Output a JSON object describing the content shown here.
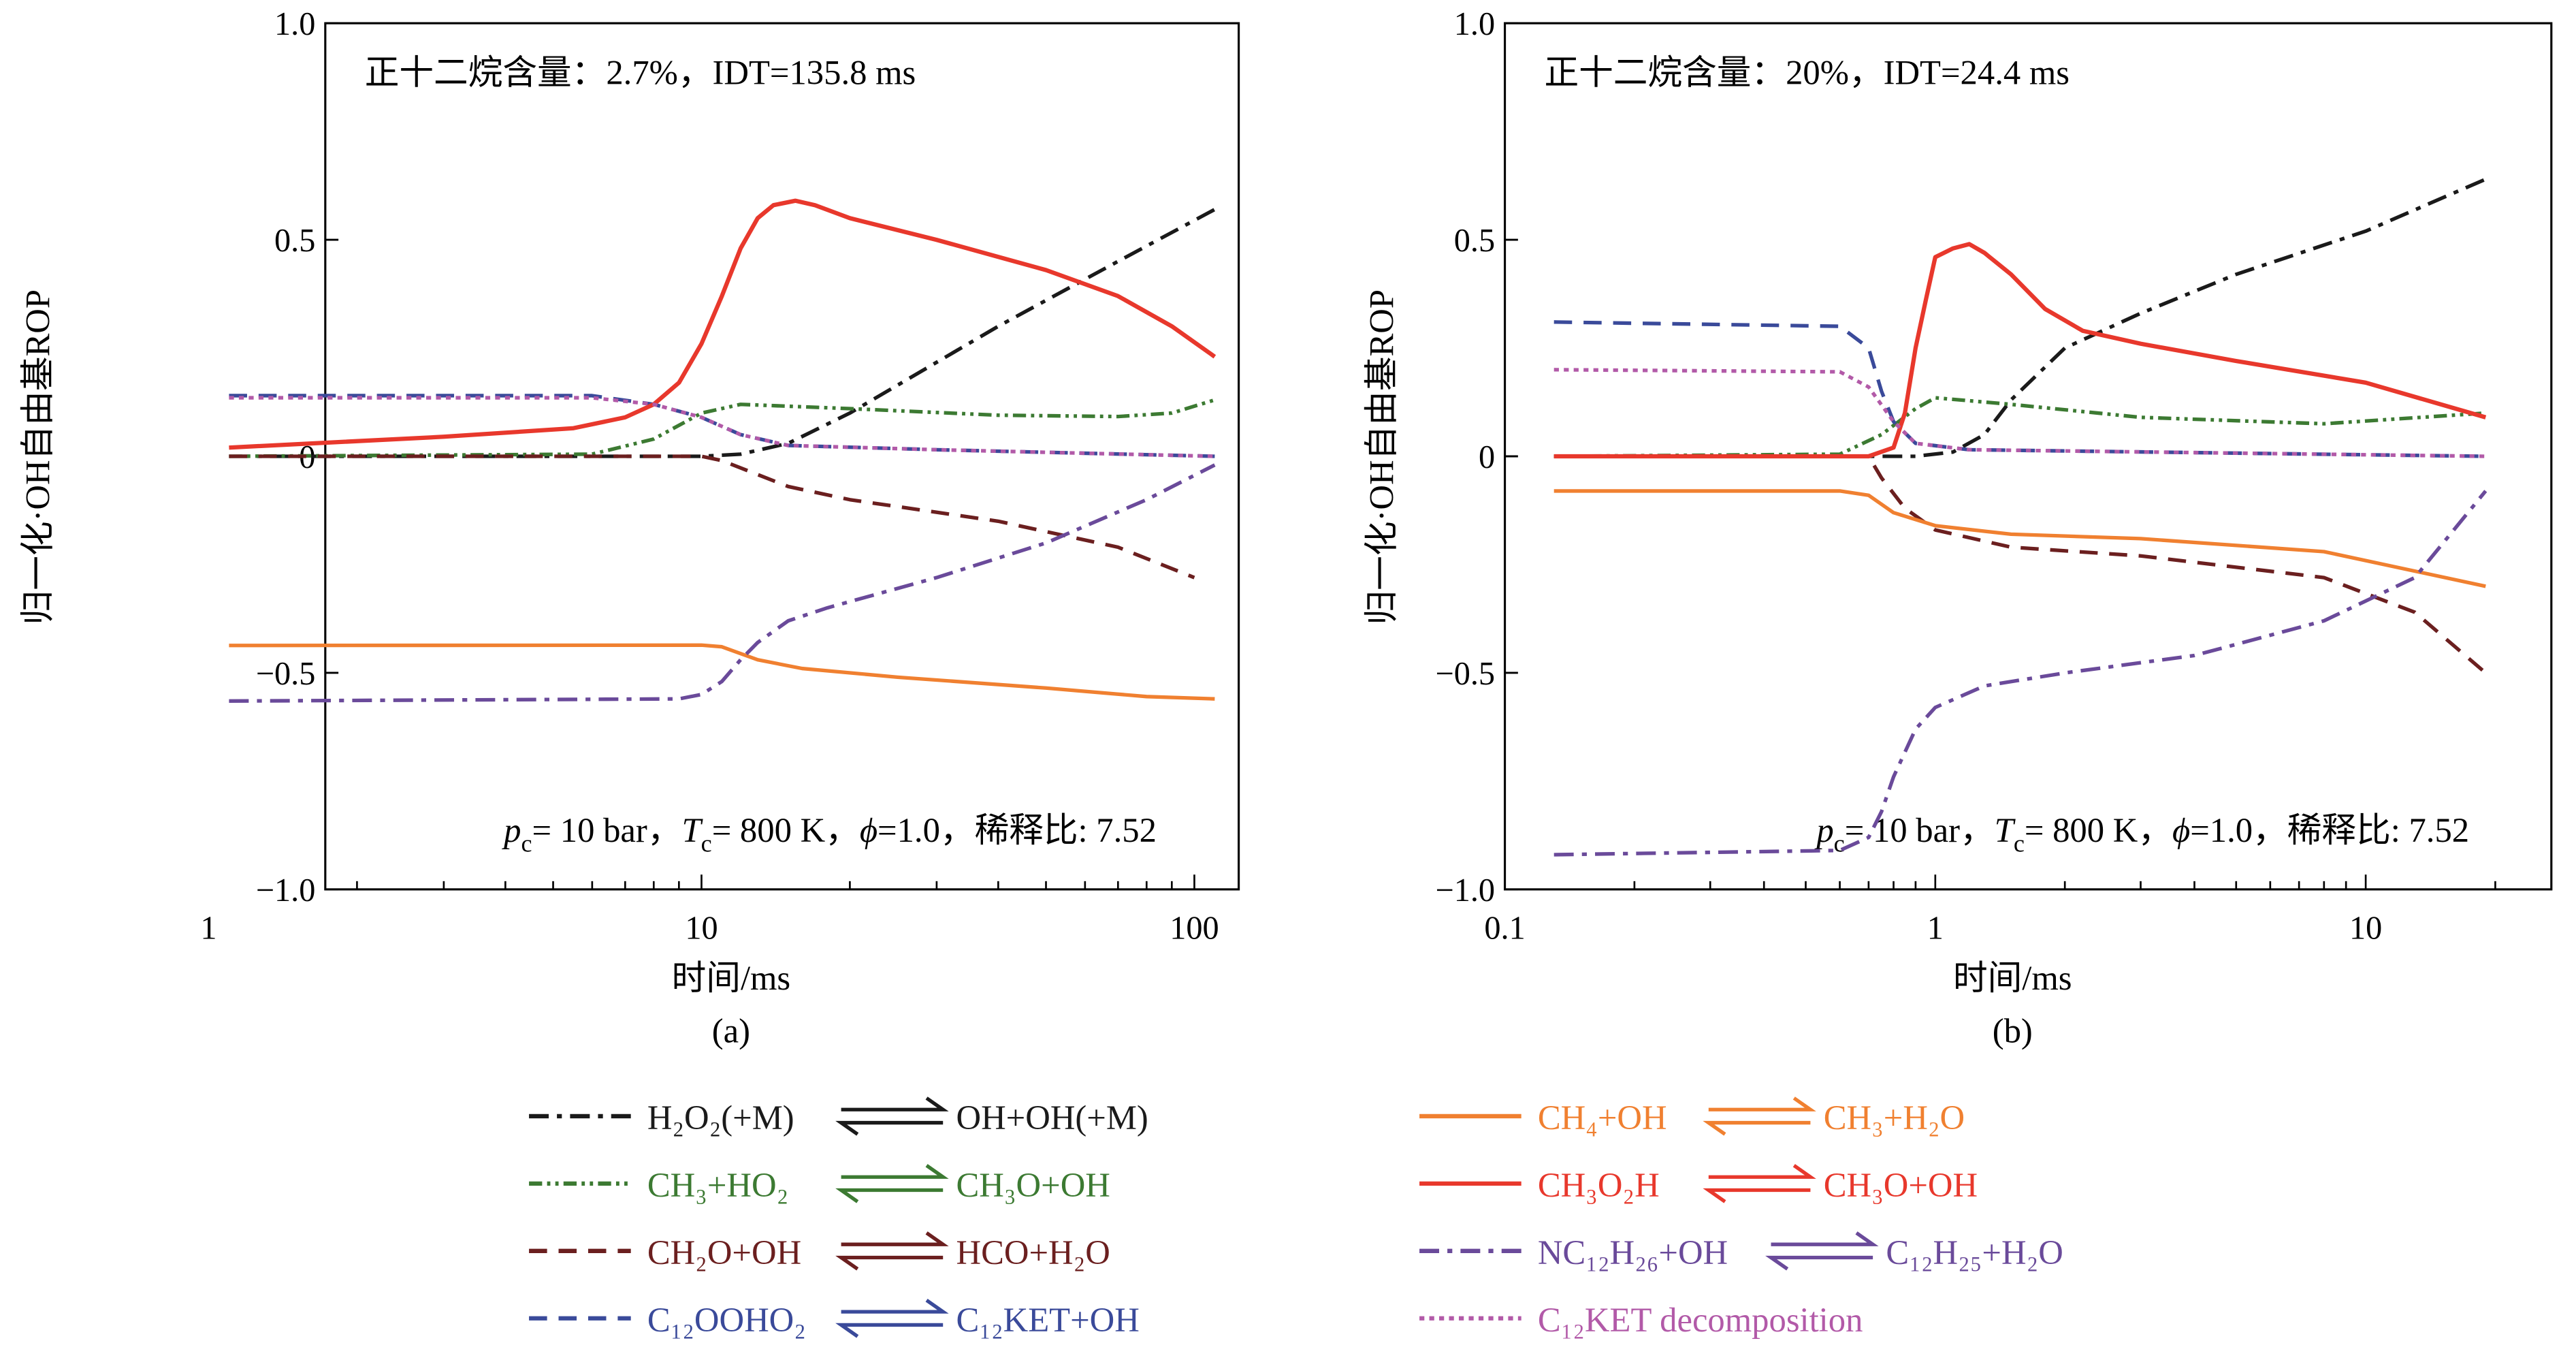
{
  "chart_data": [
    {
      "type": "line",
      "panel_label": "(a)",
      "title_annotation": "正十二烷含量：2.7%，IDT=135.8 ms",
      "conditions": {
        "p": "p",
        "p_sub": "c",
        "p_val": "= 10 bar，",
        "T": "T",
        "T_sub": "c",
        "T_val": "= 800 K，",
        "phi": "ϕ",
        "phi_val": "=1.0，",
        "dilution": "稀释比: 7.52"
      },
      "xlabel": "时间/ms",
      "ylabel": "归一化·OH自由基ROP",
      "xscale": "log",
      "xlim": [
        0.78,
        130
      ],
      "ylim": [
        -1.0,
        1.0
      ],
      "xticks": [
        {
          "v": 1,
          "label": "1"
        },
        {
          "v": 10,
          "label": "10"
        },
        {
          "v": 100,
          "label": "100"
        }
      ],
      "yticks": [
        {
          "v": 1.0,
          "label": "1.0"
        },
        {
          "v": 0.5,
          "label": "0.5"
        },
        {
          "v": 0,
          "label": "0"
        },
        {
          "v": -0.5,
          "label": "-0.5"
        },
        {
          "v": -1.0,
          "label": "-1.0"
        }
      ],
      "series": {
        "h2o2": [
          [
            1.1,
            0
          ],
          [
            10,
            0
          ],
          [
            12,
            0.005
          ],
          [
            15,
            0.03
          ],
          [
            20,
            0.1
          ],
          [
            40,
            0.3
          ],
          [
            70,
            0.45
          ],
          [
            110,
            0.57
          ]
        ],
        "ch3ho2": [
          [
            1.1,
            0
          ],
          [
            6,
            0.005
          ],
          [
            8,
            0.04
          ],
          [
            10,
            0.1
          ],
          [
            12,
            0.12
          ],
          [
            20,
            0.11
          ],
          [
            40,
            0.095
          ],
          [
            70,
            0.092
          ],
          [
            90,
            0.1
          ],
          [
            110,
            0.13
          ]
        ],
        "ch2ooh": [
          [
            1.1,
            0
          ],
          [
            10,
            0
          ],
          [
            11,
            -0.01
          ],
          [
            15,
            -0.07
          ],
          [
            20,
            -0.1
          ],
          [
            40,
            -0.15
          ],
          [
            70,
            -0.21
          ],
          [
            100,
            -0.28
          ]
        ],
        "c12oooho2": [
          [
            1.1,
            0.14
          ],
          [
            6,
            0.14
          ],
          [
            8,
            0.12
          ],
          [
            10,
            0.09
          ],
          [
            12,
            0.05
          ],
          [
            15,
            0.025
          ],
          [
            30,
            0.015
          ],
          [
            110,
            0.0
          ]
        ],
        "ch4oh": [
          [
            1.1,
            -0.437
          ],
          [
            10,
            -0.436
          ],
          [
            11,
            -0.44
          ],
          [
            13,
            -0.47
          ],
          [
            16,
            -0.49
          ],
          [
            25,
            -0.51
          ],
          [
            50,
            -0.535
          ],
          [
            80,
            -0.555
          ],
          [
            110,
            -0.56
          ]
        ],
        "ch3o2h": [
          [
            1.1,
            0.02
          ],
          [
            3,
            0.045
          ],
          [
            5.5,
            0.065
          ],
          [
            7,
            0.09
          ],
          [
            8,
            0.12
          ],
          [
            9,
            0.17
          ],
          [
            10,
            0.26
          ],
          [
            11,
            0.37
          ],
          [
            12,
            0.48
          ],
          [
            13,
            0.55
          ],
          [
            14,
            0.58
          ],
          [
            15.5,
            0.59
          ],
          [
            17,
            0.58
          ],
          [
            20,
            0.55
          ],
          [
            30,
            0.5
          ],
          [
            50,
            0.43
          ],
          [
            70,
            0.37
          ],
          [
            90,
            0.3
          ],
          [
            110,
            0.23
          ]
        ],
        "nc12h26": [
          [
            1.1,
            -0.565
          ],
          [
            9,
            -0.56
          ],
          [
            10,
            -0.55
          ],
          [
            11,
            -0.52
          ],
          [
            12,
            -0.47
          ],
          [
            13,
            -0.43
          ],
          [
            15,
            -0.38
          ],
          [
            18,
            -0.35
          ],
          [
            30,
            -0.28
          ],
          [
            50,
            -0.2
          ],
          [
            80,
            -0.1
          ],
          [
            110,
            -0.02
          ]
        ],
        "c12ket": [
          [
            1.1,
            0.135
          ],
          [
            6,
            0.135
          ],
          [
            8,
            0.12
          ],
          [
            10,
            0.09
          ],
          [
            12,
            0.05
          ],
          [
            15,
            0.025
          ],
          [
            30,
            0.015
          ],
          [
            110,
            0.0
          ]
        ]
      }
    },
    {
      "type": "line",
      "panel_label": "(b)",
      "title_annotation": "正十二烷含量：20%，IDT=24.4 ms",
      "conditions": {
        "p": "p",
        "p_sub": "c",
        "p_val": "= 10 bar，",
        "T": "T",
        "T_sub": "c",
        "T_val": "= 800 K，",
        "phi": "ϕ",
        "phi_val": "=1.0，",
        "dilution": "稀释比: 7.52"
      },
      "xlabel": "时间/ms",
      "ylabel": "归一化·OH自由基ROP",
      "xscale": "log",
      "xlim": [
        0.1,
        27
      ],
      "ylim": [
        -1.0,
        1.0
      ],
      "xticks": [
        {
          "v": 0.1,
          "label": "0.1"
        },
        {
          "v": 1,
          "label": "1"
        },
        {
          "v": 10,
          "label": "10"
        }
      ],
      "yticks": [
        {
          "v": 1.0,
          "label": "1.0"
        },
        {
          "v": 0.5,
          "label": "0.5"
        },
        {
          "v": 0,
          "label": "0"
        },
        {
          "v": -0.5,
          "label": "-0.5"
        },
        {
          "v": -1.0,
          "label": "-1.0"
        }
      ],
      "series": {
        "h2o2": [
          [
            0.13,
            0
          ],
          [
            0.9,
            0
          ],
          [
            1.1,
            0.01
          ],
          [
            1.3,
            0.05
          ],
          [
            1.5,
            0.13
          ],
          [
            2,
            0.25
          ],
          [
            3,
            0.33
          ],
          [
            5,
            0.42
          ],
          [
            10,
            0.52
          ],
          [
            19,
            0.64
          ]
        ],
        "ch3ho2": [
          [
            0.13,
            0
          ],
          [
            0.6,
            0.005
          ],
          [
            0.75,
            0.05
          ],
          [
            0.9,
            0.11
          ],
          [
            1,
            0.135
          ],
          [
            1.5,
            0.12
          ],
          [
            3,
            0.09
          ],
          [
            8,
            0.075
          ],
          [
            19,
            0.1
          ]
        ],
        "ch2ooh": [
          [
            0.13,
            0
          ],
          [
            0.7,
            0
          ],
          [
            0.75,
            -0.05
          ],
          [
            0.85,
            -0.12
          ],
          [
            1,
            -0.17
          ],
          [
            1.5,
            -0.21
          ],
          [
            3,
            -0.23
          ],
          [
            8,
            -0.28
          ],
          [
            13,
            -0.36
          ],
          [
            19,
            -0.5
          ]
        ],
        "c12oooho2": [
          [
            0.13,
            0.31
          ],
          [
            0.6,
            0.3
          ],
          [
            0.7,
            0.25
          ],
          [
            0.75,
            0.15
          ],
          [
            0.8,
            0.08
          ],
          [
            0.9,
            0.03
          ],
          [
            1.2,
            0.015
          ],
          [
            19,
            0
          ]
        ],
        "ch4oh": [
          [
            0.13,
            -0.08
          ],
          [
            0.6,
            -0.08
          ],
          [
            0.7,
            -0.09
          ],
          [
            0.8,
            -0.13
          ],
          [
            1,
            -0.16
          ],
          [
            1.5,
            -0.18
          ],
          [
            3,
            -0.19
          ],
          [
            8,
            -0.22
          ],
          [
            19,
            -0.3
          ]
        ],
        "ch3o2h": [
          [
            0.13,
            0
          ],
          [
            0.7,
            0
          ],
          [
            0.8,
            0.02
          ],
          [
            0.85,
            0.1
          ],
          [
            0.9,
            0.25
          ],
          [
            0.95,
            0.36
          ],
          [
            1.0,
            0.46
          ],
          [
            1.1,
            0.48
          ],
          [
            1.2,
            0.49
          ],
          [
            1.3,
            0.47
          ],
          [
            1.5,
            0.42
          ],
          [
            1.8,
            0.34
          ],
          [
            2.2,
            0.29
          ],
          [
            3,
            0.26
          ],
          [
            5,
            0.22
          ],
          [
            10,
            0.17
          ],
          [
            19,
            0.09
          ]
        ],
        "nc12h26": [
          [
            0.13,
            -0.92
          ],
          [
            0.6,
            -0.91
          ],
          [
            0.7,
            -0.88
          ],
          [
            0.75,
            -0.82
          ],
          [
            0.8,
            -0.74
          ],
          [
            0.9,
            -0.63
          ],
          [
            1,
            -0.58
          ],
          [
            1.3,
            -0.53
          ],
          [
            2,
            -0.5
          ],
          [
            4,
            -0.46
          ],
          [
            8,
            -0.38
          ],
          [
            13,
            -0.28
          ],
          [
            19,
            -0.08
          ]
        ],
        "c12ket": [
          [
            0.13,
            0.2
          ],
          [
            0.6,
            0.195
          ],
          [
            0.7,
            0.16
          ],
          [
            0.8,
            0.08
          ],
          [
            0.9,
            0.03
          ],
          [
            1.2,
            0.015
          ],
          [
            19,
            0
          ]
        ]
      }
    }
  ],
  "legend": [
    {
      "key": "h2o2",
      "left": "H₂O₂(+M)",
      "right": "OH+OH(+M)",
      "color": "#1a1a1a",
      "dash": "12 5 3 5",
      "width": 2.2
    },
    {
      "key": "ch3ho2",
      "left": "CH₃+HO₂",
      "right": "CH₃O+OH",
      "color": "#3c7a32",
      "dash": "8 3 2 3 2 3",
      "width": 2.2
    },
    {
      "key": "ch2ooh",
      "left": "CH₂O+OH",
      "right": "HCO+H₂O",
      "color": "#6b1f1f",
      "dash": "11 7",
      "width": 2.2
    },
    {
      "key": "c12oooho2",
      "left": "C₁₂OOHO₂",
      "right": "C₁₂KET+OH",
      "color": "#3a4a9a",
      "dash": "11 7",
      "width": 2.2
    },
    {
      "key": "ch4oh",
      "left": "CH₄+OH",
      "right": "CH₃+H₂O",
      "color": "#f08030",
      "dash": "",
      "width": 2.2
    },
    {
      "key": "ch3o2h",
      "left": "CH₃O₂H",
      "right": "CH₃O+OH",
      "color": "#e8382c",
      "dash": "",
      "width": 2.6
    },
    {
      "key": "nc12h26",
      "left": "NC₁₂H₂₆+OH",
      "right": "C₁₂H₂₅+H₂O",
      "color": "#6a4a9a",
      "dash": "12 5 3 5",
      "width": 2.2
    },
    {
      "key": "c12ket",
      "left": "C₁₂KET decomposition",
      "right": "",
      "color": "#b25aa8",
      "dash": "3 3",
      "width": 2.2
    }
  ]
}
